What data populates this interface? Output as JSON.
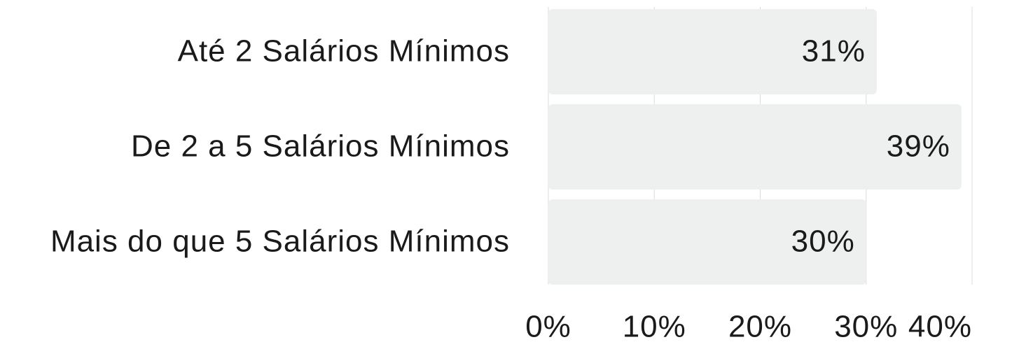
{
  "chart_data": {
    "type": "barh",
    "categories": [
      "Até 2 Salários Mínimos",
      "De 2 a 5 Salários Mínimos",
      "Mais do que 5 Salários Mínimos"
    ],
    "values": [
      31,
      39,
      30
    ],
    "value_labels": [
      "31%",
      "39%",
      "30%"
    ],
    "color": "#eef0f0",
    "xlim": [
      0,
      40
    ],
    "xticks": [
      {
        "value": 0,
        "label": "0%"
      },
      {
        "value": 10,
        "label": "10%"
      },
      {
        "value": 20,
        "label": "20%"
      },
      {
        "value": 30,
        "label": "30%"
      },
      {
        "value": 40,
        "label": "40%"
      }
    ],
    "grid": true
  }
}
